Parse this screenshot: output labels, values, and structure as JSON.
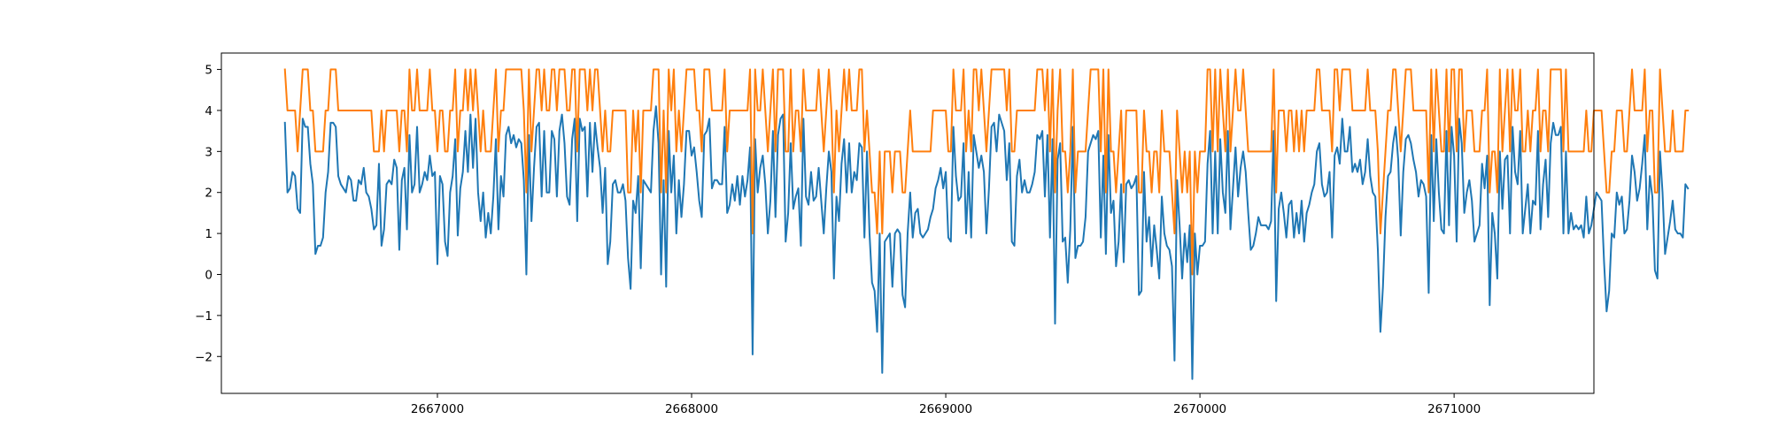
{
  "chart_data": {
    "type": "line",
    "title": "",
    "xlabel": "",
    "ylabel": "",
    "xlim": [
      2666150,
      2671550
    ],
    "ylim": [
      -2.9,
      5.4
    ],
    "grid": false,
    "legend": "none",
    "xticks": [
      2667000,
      2668000,
      2669000,
      2670000,
      2671000
    ],
    "xtick_labels": [
      "2667000",
      "2668000",
      "2669000",
      "2670000",
      "2671000"
    ],
    "yticks": [
      -2,
      -1,
      0,
      1,
      2,
      3,
      4,
      5
    ],
    "ytick_labels": [
      "−2",
      "−1",
      "0",
      "1",
      "2",
      "3",
      "4",
      "5"
    ],
    "x_start": 2666400,
    "x_step": 10,
    "series": [
      {
        "color": "#1f77b4",
        "values": [
          3.7,
          2.0,
          2.1,
          2.5,
          2.4,
          1.6,
          1.5,
          3.8,
          3.6,
          3.6,
          2.7,
          2.2,
          0.5,
          0.7,
          0.7,
          0.9,
          2.0,
          2.5,
          3.7,
          3.7,
          3.6,
          2.4,
          2.2,
          2.1,
          2.0,
          2.4,
          2.3,
          1.8,
          1.8,
          2.3,
          2.2,
          2.6,
          2.0,
          1.9,
          1.6,
          1.1,
          1.2,
          2.7,
          0.7,
          1.1,
          2.2,
          2.3,
          2.2,
          2.8,
          2.6,
          0.6,
          2.3,
          2.6,
          1.1,
          3.4,
          2.0,
          2.2,
          3.6,
          2.0,
          2.2,
          2.5,
          2.3,
          2.9,
          2.4,
          2.5,
          0.25,
          2.4,
          2.2,
          0.8,
          0.45,
          2.0,
          2.4,
          3.3,
          0.95,
          2.1,
          2.5,
          3.5,
          2.5,
          3.9,
          2.6,
          3.8,
          2.0,
          1.3,
          2.0,
          0.9,
          1.5,
          1.0,
          1.9,
          3.3,
          1.1,
          2.4,
          1.9,
          3.4,
          3.6,
          3.2,
          3.4,
          3.1,
          3.3,
          3.2,
          2.3,
          0.0,
          3.4,
          1.3,
          2.6,
          3.6,
          3.7,
          1.9,
          3.5,
          2.0,
          2.0,
          3.5,
          3.3,
          1.9,
          3.5,
          3.9,
          3.2,
          1.9,
          1.7,
          3.3,
          3.8,
          1.3,
          3.8,
          3.5,
          3.6,
          1.9,
          3.7,
          2.5,
          3.7,
          3.1,
          2.6,
          1.5,
          2.6,
          0.25,
          0.8,
          2.2,
          2.3,
          2.0,
          2.0,
          2.2,
          1.8,
          0.4,
          -0.35,
          1.8,
          1.5,
          2.4,
          0.15,
          2.3,
          2.2,
          2.1,
          2.0,
          3.5,
          4.1,
          3.2,
          0.0,
          2.3,
          -0.3,
          3.5,
          2.0,
          2.9,
          1.0,
          2.3,
          1.4,
          2.2,
          3.5,
          3.5,
          2.9,
          3.1,
          2.5,
          1.8,
          1.4,
          3.4,
          3.5,
          3.8,
          2.1,
          2.3,
          2.3,
          2.2,
          2.2,
          3.6,
          1.5,
          1.7,
          2.2,
          1.8,
          2.4,
          1.7,
          2.4,
          1.9,
          2.3,
          3.1,
          -1.95,
          3.3,
          2.0,
          2.6,
          2.9,
          2.2,
          1.0,
          1.8,
          3.5,
          1.4,
          3.4,
          3.8,
          3.9,
          0.8,
          1.5,
          3.2,
          1.6,
          1.9,
          2.1,
          0.7,
          3.8,
          1.9,
          1.7,
          2.5,
          1.8,
          1.9,
          2.6,
          1.8,
          1.0,
          2.1,
          3.0,
          2.5,
          -0.1,
          1.9,
          1.3,
          2.7,
          3.3,
          2.0,
          3.2,
          2.0,
          2.5,
          2.3,
          3.2,
          3.1,
          0.9,
          3.0,
          1.0,
          -0.2,
          -0.4,
          -1.4,
          1.0,
          -2.4,
          0.8,
          0.9,
          1.0,
          -0.3,
          1.0,
          1.1,
          1.0,
          -0.5,
          -0.8,
          1.0,
          2.0,
          0.9,
          1.5,
          1.6,
          1.0,
          0.9,
          1.0,
          1.1,
          1.4,
          1.6,
          2.1,
          2.3,
          2.6,
          2.1,
          2.5,
          0.9,
          0.8,
          3.6,
          2.4,
          1.8,
          1.9,
          3.2,
          1.0,
          2.5,
          0.9,
          3.4,
          3.0,
          2.6,
          2.9,
          2.5,
          1.0,
          2.1,
          3.6,
          3.7,
          3.0,
          3.9,
          3.7,
          3.5,
          2.3,
          3.2,
          0.8,
          0.7,
          2.4,
          2.8,
          2.0,
          2.3,
          2.0,
          2.0,
          2.2,
          2.5,
          3.4,
          3.3,
          3.5,
          1.9,
          3.4,
          0.9,
          3.3,
          -1.2,
          2.8,
          3.2,
          0.8,
          0.9,
          -0.2,
          1.1,
          3.6,
          0.4,
          0.7,
          0.7,
          0.8,
          1.4,
          3.0,
          3.2,
          3.4,
          3.3,
          3.5,
          0.9,
          2.9,
          0.5,
          3.4,
          1.5,
          1.8,
          0.2,
          0.8,
          2.2,
          0.3,
          2.2,
          2.3,
          2.1,
          2.2,
          2.4,
          -0.5,
          -0.4,
          2.5,
          0.8,
          1.4,
          0.2,
          1.2,
          0.6,
          -0.1,
          1.9,
          1.0,
          0.7,
          0.6,
          0.2,
          -2.1,
          2.3,
          1.2,
          -0.1,
          1.0,
          0.3,
          1.2,
          -2.55,
          1.0,
          0.0,
          0.7,
          0.7,
          0.8,
          2.7,
          3.5,
          1.0,
          3.0,
          1.0,
          3.3,
          2.0,
          1.5,
          3.5,
          1.1,
          2.1,
          3.1,
          1.9,
          2.6,
          3.0,
          2.5,
          1.5,
          0.6,
          0.7,
          1.0,
          1.4,
          1.2,
          1.2,
          1.2,
          1.1,
          1.3,
          3.5,
          -0.65,
          1.6,
          2.0,
          1.5,
          0.9,
          1.7,
          1.8,
          0.9,
          1.5,
          1.0,
          1.8,
          0.8,
          1.5,
          1.7,
          2.0,
          2.2,
          3.0,
          3.2,
          2.2,
          1.9,
          2.0,
          2.5,
          0.9,
          2.9,
          3.1,
          2.7,
          3.8,
          3.0,
          3.0,
          3.6,
          2.5,
          2.7,
          2.5,
          2.8,
          2.2,
          2.5,
          3.3,
          2.4,
          2.0,
          1.9,
          0.6,
          -1.4,
          -0.3,
          1.4,
          2.4,
          2.5,
          3.2,
          3.6,
          2.8,
          0.95,
          2.5,
          3.3,
          3.4,
          3.2,
          2.8,
          2.5,
          1.9,
          2.3,
          2.2,
          1.9,
          -0.45,
          3.4,
          1.3,
          3.3,
          2.0,
          1.1,
          1.0,
          3.5,
          1.2,
          3.6,
          2.9,
          0.8,
          3.8,
          3.2,
          1.5,
          2.0,
          2.3,
          1.8,
          0.8,
          1.0,
          1.2,
          2.7,
          2.1,
          2.9,
          -0.75,
          1.5,
          1.0,
          -0.1,
          3.0,
          1.6,
          2.8,
          2.9,
          1.0,
          3.6,
          2.5,
          2.2,
          3.5,
          1.0,
          1.6,
          2.2,
          1.0,
          1.8,
          1.7,
          3.5,
          1.1,
          2.2,
          2.8,
          1.4,
          3.2,
          3.7,
          3.4,
          3.4,
          3.6,
          1.0,
          3.0,
          1.0,
          1.5,
          1.1,
          1.2,
          1.1,
          1.2,
          0.9,
          1.9,
          1.0,
          1.2,
          1.6,
          2.0,
          1.9,
          1.8,
          0.3,
          -0.9,
          -0.4,
          1.0,
          0.9,
          2.0,
          1.7,
          1.9,
          1.0,
          1.1,
          1.8,
          2.9,
          2.5,
          1.8,
          2.1,
          2.7,
          3.4,
          1.1,
          2.4,
          1.9,
          0.1,
          -0.1,
          3.0,
          2.0,
          0.5,
          0.9,
          1.3,
          1.8,
          1.1,
          1.0,
          1.0,
          0.9,
          2.2,
          2.1
        ]
      },
      {
        "color": "#ff7f0e",
        "values": [
          5,
          4,
          4,
          4,
          4,
          3,
          4,
          5,
          5,
          5,
          4,
          4,
          3,
          3,
          3,
          3,
          4,
          4,
          5,
          5,
          5,
          4,
          4,
          4,
          4,
          4,
          4,
          4,
          4,
          4,
          4,
          4,
          4,
          4,
          4,
          3,
          3,
          3,
          4,
          3,
          4,
          4,
          4,
          4,
          4,
          3,
          4,
          4,
          3,
          5,
          4,
          4,
          5,
          4,
          4,
          4,
          4,
          5,
          4,
          4,
          3,
          4,
          4,
          3,
          3,
          4,
          4,
          5,
          3,
          4,
          4,
          5,
          4,
          5,
          4,
          5,
          4,
          3,
          4,
          3,
          3,
          3,
          4,
          5,
          3,
          4,
          4,
          5,
          5,
          5,
          5,
          5,
          5,
          5,
          4,
          2,
          5,
          3,
          4,
          5,
          5,
          4,
          5,
          4,
          4,
          5,
          5,
          4,
          5,
          5,
          5,
          4,
          4,
          5,
          5,
          3,
          5,
          5,
          5,
          4,
          5,
          4,
          5,
          5,
          4,
          3,
          4,
          3,
          3,
          4,
          4,
          4,
          4,
          4,
          4,
          2,
          2,
          4,
          3,
          4,
          2,
          4,
          4,
          4,
          4,
          5,
          5,
          5,
          2,
          4,
          2,
          5,
          4,
          5,
          3,
          4,
          3,
          4,
          5,
          5,
          5,
          5,
          4,
          4,
          3,
          5,
          5,
          5,
          4,
          4,
          4,
          4,
          4,
          5,
          3,
          4,
          4,
          4,
          4,
          4,
          4,
          4,
          4,
          5,
          1,
          5,
          4,
          4,
          5,
          4,
          3,
          4,
          5,
          3,
          5,
          5,
          5,
          3,
          3,
          5,
          3,
          4,
          4,
          3,
          5,
          4,
          4,
          4,
          4,
          4,
          5,
          4,
          3,
          4,
          5,
          4,
          2,
          4,
          3,
          4,
          5,
          4,
          5,
          4,
          4,
          4,
          5,
          5,
          3,
          4,
          3,
          2,
          2,
          1,
          3,
          1,
          3,
          3,
          3,
          2,
          3,
          3,
          3,
          2,
          2,
          3,
          4,
          3,
          3,
          3,
          3,
          3,
          3,
          3,
          3,
          4,
          4,
          4,
          4,
          4,
          4,
          3,
          3,
          5,
          4,
          4,
          4,
          5,
          3,
          4,
          3,
          5,
          5,
          4,
          5,
          4,
          3,
          4,
          5,
          5,
          5,
          5,
          5,
          5,
          4,
          5,
          3,
          3,
          4,
          4,
          4,
          4,
          4,
          4,
          4,
          4,
          5,
          5,
          5,
          4,
          5,
          3,
          5,
          2,
          4,
          5,
          3,
          3,
          2,
          3,
          5,
          2,
          3,
          3,
          3,
          3,
          4,
          5,
          5,
          5,
          5,
          3,
          5,
          2,
          5,
          3,
          3,
          2,
          3,
          4,
          2,
          4,
          4,
          4,
          4,
          4,
          2,
          2,
          4,
          3,
          3,
          2,
          3,
          3,
          2,
          4,
          3,
          3,
          3,
          2,
          1,
          4,
          3,
          2,
          3,
          2,
          3,
          0,
          3,
          2,
          3,
          3,
          3,
          5,
          5,
          3,
          5,
          3,
          5,
          4,
          3,
          5,
          3,
          4,
          5,
          4,
          4,
          5,
          4,
          3,
          3,
          3,
          3,
          3,
          3,
          3,
          3,
          3,
          3,
          5,
          2,
          4,
          4,
          4,
          3,
          4,
          4,
          3,
          4,
          3,
          4,
          3,
          4,
          4,
          4,
          4,
          5,
          5,
          4,
          4,
          4,
          4,
          3,
          5,
          5,
          4,
          5,
          5,
          5,
          5,
          4,
          4,
          4,
          4,
          4,
          4,
          5,
          4,
          4,
          4,
          3,
          1,
          2,
          3,
          4,
          4,
          5,
          5,
          4,
          3,
          4,
          5,
          5,
          5,
          4,
          4,
          4,
          4,
          4,
          4,
          2,
          5,
          3,
          5,
          4,
          3,
          3,
          5,
          3,
          5,
          5,
          3,
          5,
          5,
          3,
          4,
          4,
          4,
          3,
          3,
          3,
          4,
          4,
          5,
          2,
          3,
          3,
          2,
          5,
          3,
          4,
          5,
          3,
          5,
          4,
          4,
          5,
          3,
          3,
          4,
          3,
          4,
          4,
          5,
          3,
          4,
          4,
          3,
          5,
          5,
          5,
          5,
          5,
          3,
          5,
          3,
          3,
          3,
          3,
          3,
          3,
          3,
          4,
          3,
          3,
          4,
          4,
          4,
          4,
          3,
          2,
          2,
          3,
          3,
          4,
          4,
          4,
          3,
          3,
          4,
          5,
          4,
          4,
          4,
          4,
          5,
          3,
          4,
          4,
          2,
          2,
          5,
          4,
          3,
          3,
          3,
          4,
          3,
          3,
          3,
          3,
          4,
          4
        ]
      }
    ]
  }
}
